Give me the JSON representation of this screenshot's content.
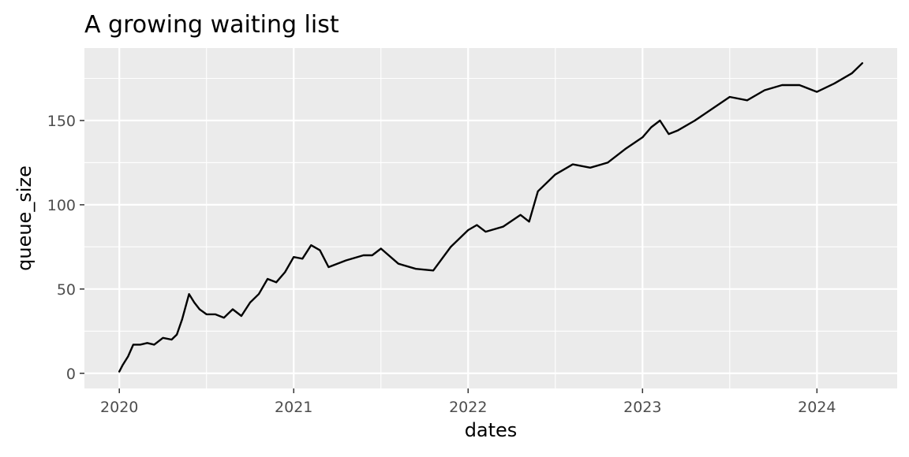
{
  "chart_data": {
    "type": "line",
    "title": "A growing waiting list",
    "xlabel": "dates",
    "ylabel": "queue_size",
    "xlim": [
      2019.8,
      2024.46
    ],
    "ylim": [
      -9,
      193
    ],
    "x_ticks": [
      2020,
      2021,
      2022,
      2023,
      2024
    ],
    "x_tick_labels": [
      "2020",
      "2021",
      "2022",
      "2023",
      "2024"
    ],
    "y_ticks": [
      0,
      50,
      100,
      150
    ],
    "y_tick_labels": [
      "0",
      "50",
      "100",
      "150"
    ],
    "grid": true,
    "legend": "none",
    "colors": {
      "panel": "#ebebeb",
      "grid": "#ffffff",
      "line": "#000000",
      "text": "#4d4d4d",
      "title": "#000000"
    },
    "series": [
      {
        "name": "queue_size",
        "x": [
          2020.0,
          2020.02,
          2020.05,
          2020.08,
          2020.12,
          2020.16,
          2020.2,
          2020.25,
          2020.3,
          2020.33,
          2020.36,
          2020.4,
          2020.43,
          2020.46,
          2020.5,
          2020.55,
          2020.6,
          2020.65,
          2020.7,
          2020.75,
          2020.8,
          2020.85,
          2020.9,
          2020.95,
          2021.0,
          2021.05,
          2021.1,
          2021.15,
          2021.2,
          2021.3,
          2021.4,
          2021.45,
          2021.5,
          2021.6,
          2021.7,
          2021.8,
          2021.9,
          2022.0,
          2022.05,
          2022.1,
          2022.2,
          2022.3,
          2022.35,
          2022.4,
          2022.5,
          2022.6,
          2022.7,
          2022.8,
          2022.9,
          2023.0,
          2023.05,
          2023.1,
          2023.15,
          2023.2,
          2023.3,
          2023.4,
          2023.5,
          2023.6,
          2023.7,
          2023.8,
          2023.9,
          2024.0,
          2024.1,
          2024.2,
          2024.26
        ],
        "values": [
          1,
          5,
          10,
          17,
          17,
          18,
          17,
          21,
          20,
          23,
          32,
          47,
          42,
          38,
          35,
          35,
          33,
          38,
          34,
          42,
          47,
          56,
          54,
          60,
          69,
          68,
          76,
          73,
          63,
          67,
          70,
          70,
          74,
          65,
          62,
          61,
          75,
          85,
          88,
          84,
          87,
          94,
          90,
          108,
          118,
          124,
          122,
          125,
          133,
          140,
          146,
          150,
          142,
          144,
          150,
          157,
          164,
          162,
          168,
          171,
          171,
          167,
          172,
          178,
          184
        ]
      }
    ]
  }
}
